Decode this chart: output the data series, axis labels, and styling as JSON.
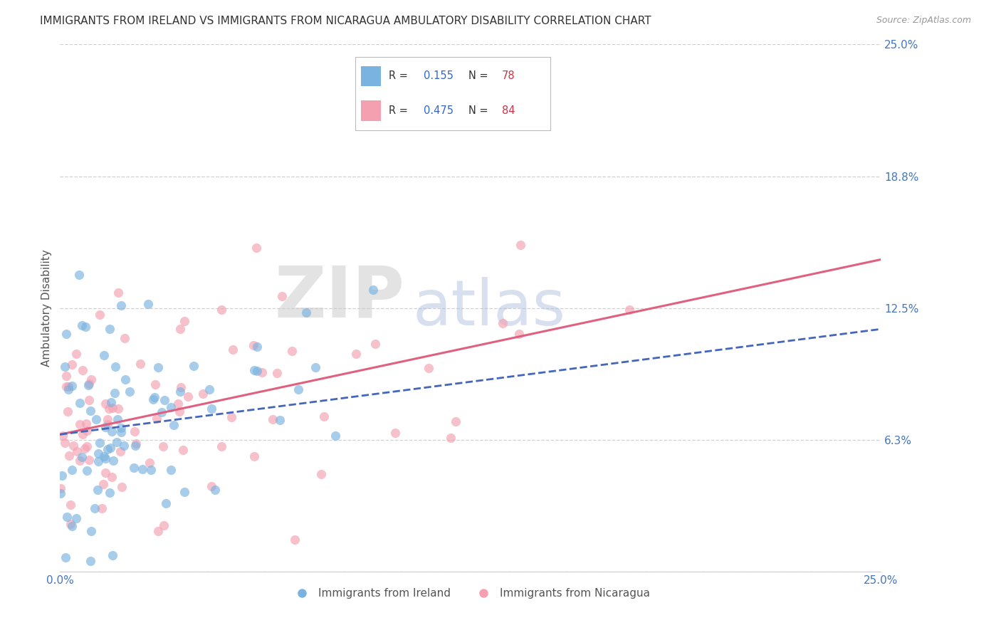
{
  "title": "IMMIGRANTS FROM IRELAND VS IMMIGRANTS FROM NICARAGUA AMBULATORY DISABILITY CORRELATION CHART",
  "source": "Source: ZipAtlas.com",
  "ylabel": "Ambulatory Disability",
  "xlim": [
    0,
    0.25
  ],
  "ylim": [
    0,
    0.25
  ],
  "ireland_R": 0.155,
  "ireland_N": 78,
  "nicaragua_R": 0.475,
  "nicaragua_N": 84,
  "ireland_color": "#7ab3e0",
  "nicaragua_color": "#f4a0b0",
  "ireland_line_color": "#4466bb",
  "nicaragua_line_color": "#e06080",
  "legend_label_1": "Immigrants from Ireland",
  "legend_label_2": "Immigrants from Nicaragua",
  "title_color": "#333333",
  "axis_label_color": "#555555",
  "tick_color": "#4477bb",
  "watermark_zip": "ZIP",
  "watermark_atlas": "atlas",
  "background_color": "#ffffff",
  "grid_color": "#cccccc",
  "ireland_trend_x0": 0.0,
  "ireland_trend_y0": 0.065,
  "ireland_trend_x1": 0.25,
  "ireland_trend_y1": 0.115,
  "nicaragua_trend_x0": 0.0,
  "nicaragua_trend_y0": 0.065,
  "nicaragua_trend_x1": 0.25,
  "nicaragua_trend_y1": 0.148
}
